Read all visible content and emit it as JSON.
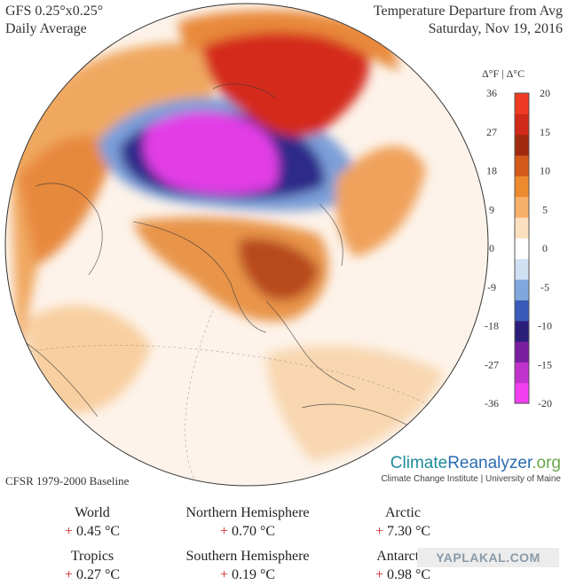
{
  "header": {
    "model": "GFS 0.25°x0.25°",
    "averaging": "Daily Average",
    "title": "Temperature Departure from Avg",
    "date": "Saturday, Nov 19, 2016"
  },
  "legend": {
    "units_label": "Δ°F | Δ°C",
    "fahrenheit_ticks": [
      "36",
      "27",
      "18",
      "9",
      "0",
      "-9",
      "-18",
      "-27",
      "-36"
    ],
    "celsius_ticks": [
      "20",
      "15",
      "10",
      "5",
      "0",
      "-5",
      "-10",
      "-15",
      "-20"
    ],
    "colors": [
      "#f23ff0",
      "#c033cc",
      "#7a1fa0",
      "#2b1e7a",
      "#3a5bb8",
      "#7fa9dd",
      "#cfe0f2",
      "#ffffff",
      "#fbe0c0",
      "#f7b06a",
      "#ee8a2e",
      "#d45a1a",
      "#a02a10",
      "#d12a1a",
      "#ee3a22"
    ]
  },
  "baseline": "CFSR 1979-2000 Baseline",
  "brand": {
    "name_part1": "Climate",
    "name_part2": "Reanalyzer",
    "name_part3": ".org",
    "subtitle": "Climate Change Institute | University of Maine"
  },
  "stats": [
    {
      "region": "World",
      "sign": "+",
      "value": "0.45 °C"
    },
    {
      "region": "Northern Hemisphere",
      "sign": "+",
      "value": "0.70 °C"
    },
    {
      "region": "Arctic",
      "sign": "+",
      "value": "7.30 °C"
    },
    {
      "region": "Tropics",
      "sign": "+",
      "value": "0.27 °C"
    },
    {
      "region": "Southern Hemisphere",
      "sign": "+",
      "value": "0.19 °C"
    },
    {
      "region": "Antarctic",
      "sign": "+",
      "value": "0.98 °C"
    }
  ],
  "watermark": "YAPLAKAL.COM"
}
